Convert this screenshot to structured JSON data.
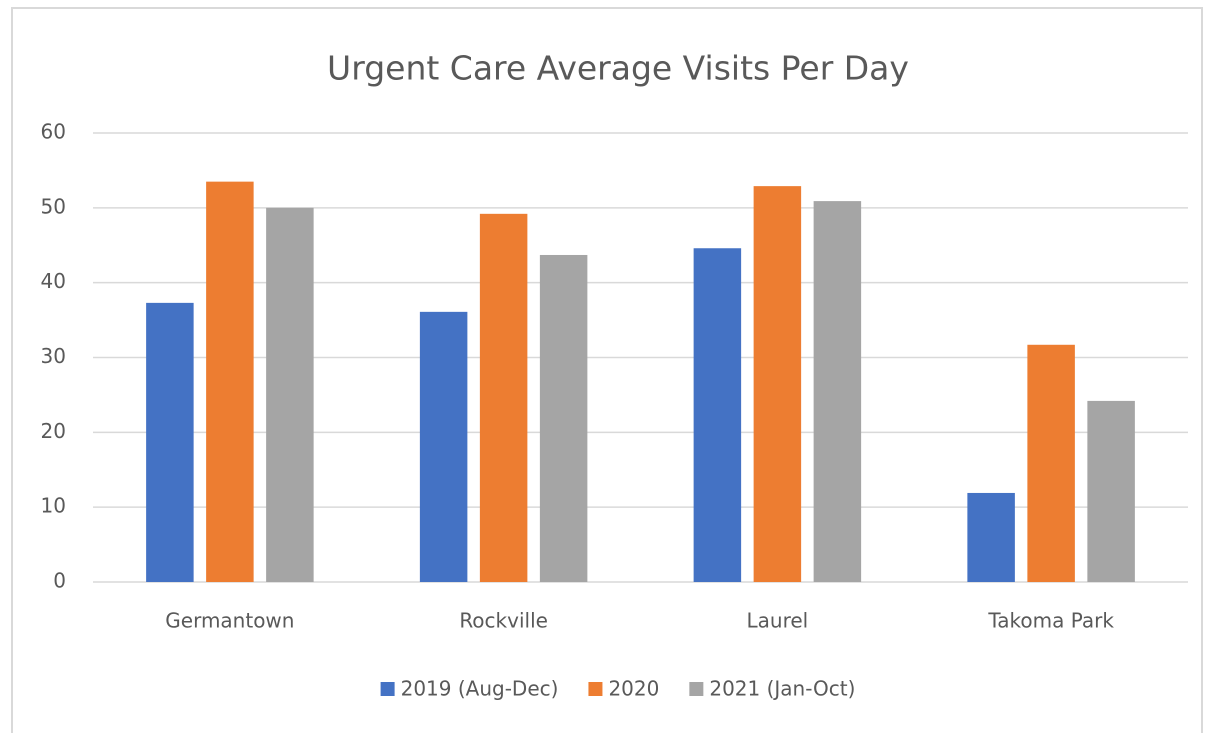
{
  "chart_data": {
    "type": "bar",
    "title": "Urgent Care Average Visits Per Day",
    "categories": [
      "Germantown",
      "Rockville",
      "Laurel",
      "Takoma Park"
    ],
    "series": [
      {
        "name": "2019 (Aug-Dec)",
        "color": "#4472c4",
        "values": [
          37.3,
          36.1,
          44.6,
          11.9
        ]
      },
      {
        "name": "2020",
        "color": "#ed7d31",
        "values": [
          53.5,
          49.2,
          52.9,
          31.7
        ]
      },
      {
        "name": "2021 (Jan-Oct)",
        "color": "#a5a5a5",
        "values": [
          50.0,
          43.7,
          50.9,
          24.2
        ]
      }
    ],
    "ylim": [
      0,
      60
    ],
    "yticks": [
      0,
      10,
      20,
      30,
      40,
      50,
      60
    ],
    "grid": true,
    "legend": "bottom"
  }
}
